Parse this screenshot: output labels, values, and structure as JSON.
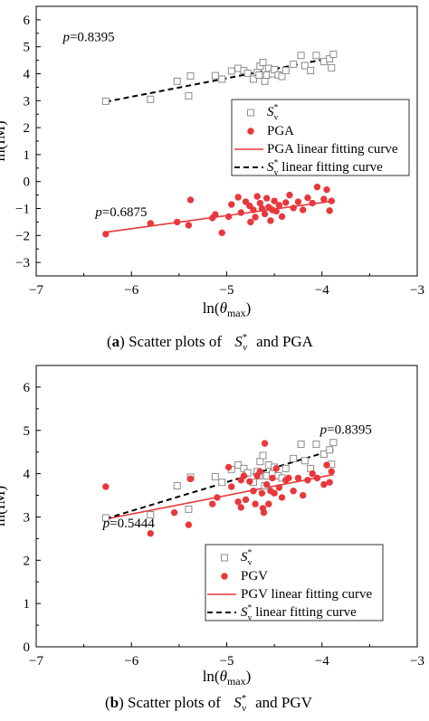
{
  "chart_data": [
    {
      "type": "scatter",
      "caption": {
        "prefix": "(",
        "letter": "a",
        "suffix": ") Scatter plots of",
        "mid": "and PGA"
      },
      "xlabel": "ln(θmax)",
      "ylabel": "ln(IM)",
      "xlim": [
        -7,
        -3
      ],
      "ylim": [
        -3.5,
        6.5
      ],
      "xticks": [
        "−7",
        "−6",
        "−5",
        "−4",
        "−3"
      ],
      "yticks": [
        "−3",
        "−2",
        "−1",
        "0",
        "1",
        "2",
        "3",
        "4",
        "5",
        "6"
      ],
      "legend_position": "right-middle",
      "series": [
        {
          "name": "S*v",
          "marker": "open-square",
          "color": "#8c8c8c",
          "x": [
            -6.27,
            -5.8,
            -5.52,
            -5.4,
            -5.38,
            -5.12,
            -5.05,
            -4.95,
            -4.88,
            -4.82,
            -4.78,
            -4.72,
            -4.68,
            -4.66,
            -4.65,
            -4.62,
            -4.6,
            -4.58,
            -4.56,
            -4.52,
            -4.5,
            -4.46,
            -4.42,
            -4.38,
            -4.3,
            -4.22,
            -4.18,
            -4.12,
            -4.06,
            -3.98,
            -3.92,
            -3.9,
            -3.88
          ],
          "y": [
            2.98,
            3.05,
            3.72,
            3.18,
            3.92,
            3.93,
            3.8,
            4.1,
            4.2,
            4.12,
            4.02,
            3.8,
            4.05,
            3.95,
            4.28,
            4.42,
            3.72,
            3.95,
            4.2,
            4.0,
            4.15,
            3.95,
            3.9,
            4.12,
            4.35,
            4.68,
            4.3,
            4.12,
            4.68,
            4.45,
            4.55,
            4.22,
            4.72
          ]
        },
        {
          "name": "PGA",
          "marker": "filled-circle",
          "color": "#e8383d",
          "x": [
            -6.27,
            -5.8,
            -5.52,
            -5.4,
            -5.38,
            -5.12,
            -5.05,
            -4.98,
            -4.95,
            -4.88,
            -4.85,
            -4.8,
            -4.76,
            -4.72,
            -4.7,
            -4.68,
            -4.65,
            -4.63,
            -4.6,
            -4.58,
            -4.56,
            -4.54,
            -4.5,
            -4.48,
            -4.45,
            -4.42,
            -4.38,
            -4.34,
            -4.3,
            -4.25,
            -4.2,
            -4.15,
            -4.1,
            -4.05,
            -3.98,
            -3.95,
            -3.92,
            -3.9,
            -4.75,
            -4.52,
            -5.15
          ],
          "y": [
            -1.95,
            -1.55,
            -1.5,
            -1.62,
            -0.68,
            -1.22,
            -1.9,
            -1.3,
            -0.85,
            -0.58,
            -1.15,
            -0.75,
            -0.9,
            -1.05,
            -1.32,
            -0.55,
            -0.8,
            -1.0,
            -1.2,
            -0.62,
            -0.95,
            -1.45,
            -0.72,
            -1.1,
            -0.88,
            -1.3,
            -0.78,
            -0.5,
            -0.98,
            -0.75,
            -1.05,
            -0.6,
            -0.8,
            -0.2,
            -0.65,
            -0.3,
            -1.08,
            -0.72,
            -1.5,
            -1.05,
            -1.35
          ]
        }
      ],
      "fits": [
        {
          "name": "PGA linear fitting curve",
          "style": "solid",
          "color": "#e8383d",
          "x": [
            -6.27,
            -3.88
          ],
          "y": [
            -1.88,
            -0.72
          ]
        },
        {
          "name": "S*v linear fitting curve",
          "style": "dashed",
          "color": "#000000",
          "x": [
            -6.27,
            -3.88
          ],
          "y": [
            2.96,
            4.6
          ]
        }
      ],
      "annotations": [
        {
          "label": "p",
          "value": "=0.8395",
          "x": -6.72,
          "y": 5.2
        },
        {
          "label": "p",
          "value": "=0.6875",
          "x": -6.38,
          "y": -1.28
        }
      ]
    },
    {
      "type": "scatter",
      "caption": {
        "prefix": "(",
        "letter": "b",
        "suffix": ") Scatter plots of",
        "mid": "and PGV"
      },
      "xlabel": "ln(θmax)",
      "ylabel": "ln(IM)",
      "xlim": [
        -7,
        -3
      ],
      "ylim": [
        0,
        6.5
      ],
      "xticks": [
        "−7",
        "−6",
        "−5",
        "−4",
        "−3"
      ],
      "yticks": [
        "0",
        "1",
        "2",
        "3",
        "4",
        "5",
        "6"
      ],
      "legend_position": "right-middle",
      "series": [
        {
          "name": "S*v",
          "marker": "open-square",
          "color": "#8c8c8c",
          "x": [
            -6.27,
            -5.8,
            -5.52,
            -5.4,
            -5.38,
            -5.12,
            -5.05,
            -4.95,
            -4.88,
            -4.82,
            -4.78,
            -4.72,
            -4.68,
            -4.66,
            -4.65,
            -4.62,
            -4.6,
            -4.58,
            -4.56,
            -4.52,
            -4.5,
            -4.46,
            -4.42,
            -4.38,
            -4.3,
            -4.22,
            -4.18,
            -4.12,
            -4.06,
            -3.98,
            -3.92,
            -3.9,
            -3.88
          ],
          "y": [
            2.98,
            3.05,
            3.72,
            3.18,
            3.92,
            3.93,
            3.8,
            4.1,
            4.2,
            4.12,
            4.02,
            3.8,
            4.05,
            3.95,
            4.28,
            4.42,
            3.72,
            3.95,
            4.2,
            4.0,
            4.15,
            3.95,
            3.9,
            4.12,
            4.35,
            4.68,
            4.3,
            4.12,
            4.68,
            4.45,
            4.55,
            4.22,
            4.72
          ]
        },
        {
          "name": "PGV",
          "marker": "filled-circle",
          "color": "#e8383d",
          "x": [
            -6.27,
            -5.8,
            -5.55,
            -5.4,
            -5.38,
            -5.15,
            -5.1,
            -4.98,
            -4.95,
            -4.88,
            -4.85,
            -4.82,
            -4.8,
            -4.76,
            -4.72,
            -4.7,
            -4.68,
            -4.65,
            -4.63,
            -4.61,
            -4.6,
            -4.58,
            -4.56,
            -4.54,
            -4.52,
            -4.5,
            -4.48,
            -4.45,
            -4.42,
            -4.38,
            -4.35,
            -4.3,
            -4.25,
            -4.2,
            -4.15,
            -4.1,
            -4.05,
            -3.98,
            -3.95,
            -3.92,
            -3.9,
            -4.62,
            -4.85
          ],
          "y": [
            3.7,
            2.62,
            3.1,
            2.82,
            3.88,
            3.3,
            3.45,
            4.15,
            3.7,
            3.35,
            3.85,
            3.95,
            3.4,
            3.82,
            3.6,
            3.3,
            3.95,
            4.05,
            3.55,
            3.1,
            4.7,
            3.75,
            3.3,
            3.6,
            3.9,
            3.55,
            4.12,
            3.68,
            3.45,
            3.85,
            3.9,
            3.6,
            3.9,
            3.5,
            3.85,
            4.0,
            3.9,
            3.75,
            4.2,
            3.8,
            4.05,
            3.2,
            3.22
          ]
        }
      ],
      "fits": [
        {
          "name": "PGV linear fitting curve",
          "style": "solid",
          "color": "#e8383d",
          "x": [
            -6.27,
            -3.88
          ],
          "y": [
            2.95,
            3.98
          ]
        },
        {
          "name": "S*v linear fitting curve",
          "style": "dashed",
          "color": "#000000",
          "x": [
            -6.27,
            -3.88
          ],
          "y": [
            2.96,
            4.55
          ]
        }
      ],
      "annotations": [
        {
          "label": "p",
          "value": "=0.8395",
          "x": -4.02,
          "y": 4.92
        },
        {
          "label": "p",
          "value": "=0.5444",
          "x": -6.3,
          "y": 2.76
        }
      ]
    }
  ]
}
